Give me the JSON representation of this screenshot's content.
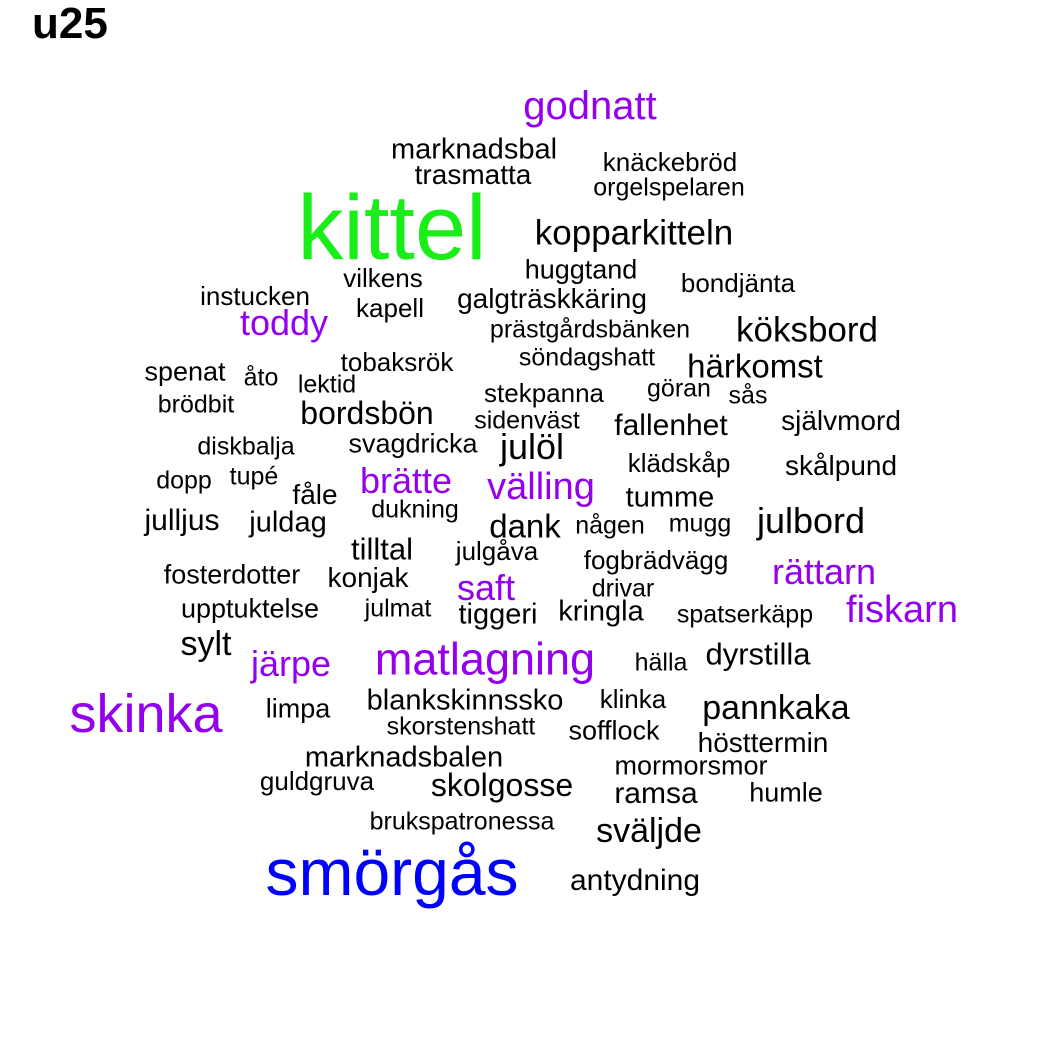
{
  "title": "u25",
  "colors": {
    "purple": "#9400ee",
    "green": "#19ee19",
    "blue": "#0000ff",
    "black": "#000000"
  },
  "words": [
    {
      "text": "kittel",
      "color": "green"
    },
    {
      "text": "smörgås",
      "color": "blue"
    },
    {
      "text": "skinka",
      "color": "purple"
    },
    {
      "text": "matlagning",
      "color": "purple"
    },
    {
      "text": "godnatt",
      "color": "purple"
    },
    {
      "text": "toddy",
      "color": "purple"
    },
    {
      "text": "brätte",
      "color": "purple"
    },
    {
      "text": "välling",
      "color": "purple"
    },
    {
      "text": "saft",
      "color": "purple"
    },
    {
      "text": "rättarn",
      "color": "purple"
    },
    {
      "text": "fiskarn",
      "color": "purple"
    },
    {
      "text": "järpe",
      "color": "purple"
    },
    {
      "text": "marknadsbal",
      "color": "black"
    },
    {
      "text": "knäckebröd",
      "color": "black"
    },
    {
      "text": "trasmatta",
      "color": "black"
    },
    {
      "text": "orgelspelaren",
      "color": "black"
    },
    {
      "text": "kopparkitteln",
      "color": "black"
    },
    {
      "text": "huggtand",
      "color": "black"
    },
    {
      "text": "bondjänta",
      "color": "black"
    },
    {
      "text": "vilkens",
      "color": "black"
    },
    {
      "text": "instucken",
      "color": "black"
    },
    {
      "text": "galgträskkäring",
      "color": "black"
    },
    {
      "text": "kapell",
      "color": "black"
    },
    {
      "text": "prästgårdsbänken",
      "color": "black"
    },
    {
      "text": "köksbord",
      "color": "black"
    },
    {
      "text": "söndagshatt",
      "color": "black"
    },
    {
      "text": "tobaksrök",
      "color": "black"
    },
    {
      "text": "härkomst",
      "color": "black"
    },
    {
      "text": "spenat",
      "color": "black"
    },
    {
      "text": "åto",
      "color": "black"
    },
    {
      "text": "lektid",
      "color": "black"
    },
    {
      "text": "stekpanna",
      "color": "black"
    },
    {
      "text": "göran",
      "color": "black"
    },
    {
      "text": "sås",
      "color": "black"
    },
    {
      "text": "brödbit",
      "color": "black"
    },
    {
      "text": "bordsbön",
      "color": "black"
    },
    {
      "text": "sidenväst",
      "color": "black"
    },
    {
      "text": "fallenhet",
      "color": "black"
    },
    {
      "text": "självmord",
      "color": "black"
    },
    {
      "text": "diskbalja",
      "color": "black"
    },
    {
      "text": "svagdricka",
      "color": "black"
    },
    {
      "text": "julöl",
      "color": "black"
    },
    {
      "text": "klädskåp",
      "color": "black"
    },
    {
      "text": "skålpund",
      "color": "black"
    },
    {
      "text": "dopp",
      "color": "black"
    },
    {
      "text": "tupé",
      "color": "black"
    },
    {
      "text": "fåle",
      "color": "black"
    },
    {
      "text": "tumme",
      "color": "black"
    },
    {
      "text": "dukning",
      "color": "black"
    },
    {
      "text": "julljus",
      "color": "black"
    },
    {
      "text": "juldag",
      "color": "black"
    },
    {
      "text": "dank",
      "color": "black"
    },
    {
      "text": "någen",
      "color": "black"
    },
    {
      "text": "mugg",
      "color": "black"
    },
    {
      "text": "julbord",
      "color": "black"
    },
    {
      "text": "tilltal",
      "color": "black"
    },
    {
      "text": "julgåva",
      "color": "black"
    },
    {
      "text": "fogbrädvägg",
      "color": "black"
    },
    {
      "text": "fosterdotter",
      "color": "black"
    },
    {
      "text": "konjak",
      "color": "black"
    },
    {
      "text": "drivar",
      "color": "black"
    },
    {
      "text": "upptuktelse",
      "color": "black"
    },
    {
      "text": "julmat",
      "color": "black"
    },
    {
      "text": "tiggeri",
      "color": "black"
    },
    {
      "text": "kringla",
      "color": "black"
    },
    {
      "text": "spatserkäpp",
      "color": "black"
    },
    {
      "text": "sylt",
      "color": "black"
    },
    {
      "text": "hälla",
      "color": "black"
    },
    {
      "text": "dyrstilla",
      "color": "black"
    },
    {
      "text": "blankskinnssko",
      "color": "black"
    },
    {
      "text": "klinka",
      "color": "black"
    },
    {
      "text": "limpa",
      "color": "black"
    },
    {
      "text": "pannkaka",
      "color": "black"
    },
    {
      "text": "skorstenshatt",
      "color": "black"
    },
    {
      "text": "sofflock",
      "color": "black"
    },
    {
      "text": "hösttermin",
      "color": "black"
    },
    {
      "text": "marknadsbalen",
      "color": "black"
    },
    {
      "text": "mormorsmor",
      "color": "black"
    },
    {
      "text": "guldgruva",
      "color": "black"
    },
    {
      "text": "skolgosse",
      "color": "black"
    },
    {
      "text": "ramsa",
      "color": "black"
    },
    {
      "text": "humle",
      "color": "black"
    },
    {
      "text": "brukspatronessa",
      "color": "black"
    },
    {
      "text": "sväljde",
      "color": "black"
    },
    {
      "text": "antydning",
      "color": "black"
    }
  ]
}
